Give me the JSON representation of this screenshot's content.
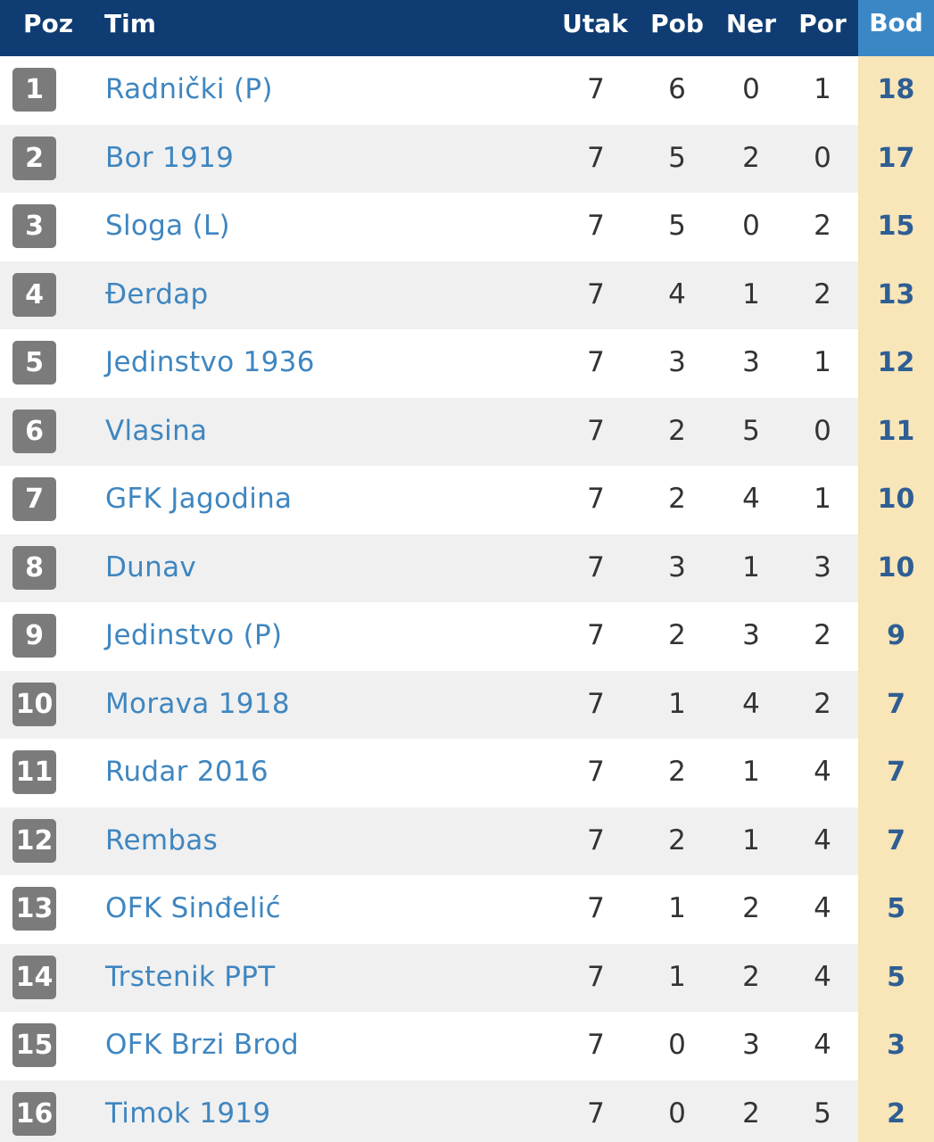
{
  "header": {
    "poz": "Poz",
    "tim": "Tim",
    "utak": "Utak",
    "pob": "Pob",
    "ner": "Ner",
    "por": "Por",
    "bod": "Bod"
  },
  "colors": {
    "header_bg": "#0f3d73",
    "bod_header_bg": "#3b87c6",
    "bod_cell_bg": "#f8e5b8",
    "team_link": "#3f86c0",
    "pos_badge": "#7b7b7b"
  },
  "rows": [
    {
      "poz": "1",
      "tim": "Radnički (P)",
      "utak": "7",
      "pob": "6",
      "ner": "0",
      "por": "1",
      "bod": "18"
    },
    {
      "poz": "2",
      "tim": "Bor 1919",
      "utak": "7",
      "pob": "5",
      "ner": "2",
      "por": "0",
      "bod": "17"
    },
    {
      "poz": "3",
      "tim": "Sloga (L)",
      "utak": "7",
      "pob": "5",
      "ner": "0",
      "por": "2",
      "bod": "15"
    },
    {
      "poz": "4",
      "tim": "Đerdap",
      "utak": "7",
      "pob": "4",
      "ner": "1",
      "por": "2",
      "bod": "13"
    },
    {
      "poz": "5",
      "tim": "Jedinstvo 1936",
      "utak": "7",
      "pob": "3",
      "ner": "3",
      "por": "1",
      "bod": "12"
    },
    {
      "poz": "6",
      "tim": "Vlasina",
      "utak": "7",
      "pob": "2",
      "ner": "5",
      "por": "0",
      "bod": "11"
    },
    {
      "poz": "7",
      "tim": "GFK Jagodina",
      "utak": "7",
      "pob": "2",
      "ner": "4",
      "por": "1",
      "bod": "10"
    },
    {
      "poz": "8",
      "tim": "Dunav",
      "utak": "7",
      "pob": "3",
      "ner": "1",
      "por": "3",
      "bod": "10"
    },
    {
      "poz": "9",
      "tim": "Jedinstvo (P)",
      "utak": "7",
      "pob": "2",
      "ner": "3",
      "por": "2",
      "bod": "9"
    },
    {
      "poz": "10",
      "tim": "Morava 1918",
      "utak": "7",
      "pob": "1",
      "ner": "4",
      "por": "2",
      "bod": "7"
    },
    {
      "poz": "11",
      "tim": "Rudar 2016",
      "utak": "7",
      "pob": "2",
      "ner": "1",
      "por": "4",
      "bod": "7"
    },
    {
      "poz": "12",
      "tim": "Rembas",
      "utak": "7",
      "pob": "2",
      "ner": "1",
      "por": "4",
      "bod": "7"
    },
    {
      "poz": "13",
      "tim": "OFK Sinđelić",
      "utak": "7",
      "pob": "1",
      "ner": "2",
      "por": "4",
      "bod": "5"
    },
    {
      "poz": "14",
      "tim": "Trstenik PPT",
      "utak": "7",
      "pob": "1",
      "ner": "2",
      "por": "4",
      "bod": "5"
    },
    {
      "poz": "15",
      "tim": "OFK Brzi Brod",
      "utak": "7",
      "pob": "0",
      "ner": "3",
      "por": "4",
      "bod": "3"
    },
    {
      "poz": "16",
      "tim": "Timok 1919",
      "utak": "7",
      "pob": "0",
      "ner": "2",
      "por": "5",
      "bod": "2"
    }
  ]
}
